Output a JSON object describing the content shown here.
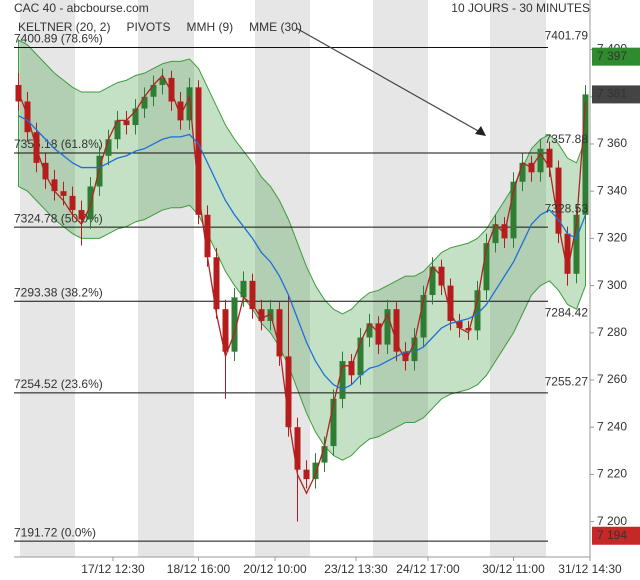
{
  "header": {
    "title": "CAC 40 - abcbourse.com",
    "period": "10 JOURS - 30 MINUTES"
  },
  "chart_data": {
    "type": "candlestick",
    "up_color": "#2e7d32",
    "down_color": "#b71c1c",
    "open": [
      7385,
      7378,
      7365,
      7352,
      7345,
      7340,
      7338,
      7332,
      7328,
      7342,
      7355,
      7362,
      7370,
      7368,
      7375,
      7380,
      7385,
      7388,
      7378,
      7370,
      7384,
      7330,
      7312,
      7290,
      7272,
      7295,
      7302,
      7290,
      7285,
      7290,
      7270,
      7240,
      7222,
      7218,
      7225,
      7232,
      7252,
      7268,
      7262,
      7278,
      7284,
      7275,
      7290,
      7272,
      7268,
      7278,
      7296,
      7308,
      7300,
      7285,
      7282,
      7281,
      7298,
      7318,
      7326,
      7320,
      7344,
      7352,
      7348,
      7358,
      7350,
      7322,
      7305,
      7330
    ],
    "high": [
      7390,
      7382,
      7369,
      7356,
      7349,
      7344,
      7342,
      7336,
      7346,
      7359,
      7366,
      7374,
      7374,
      7379,
      7384,
      7389,
      7392,
      7391,
      7382,
      7388,
      7387,
      7334,
      7316,
      7294,
      7299,
      7306,
      7305,
      7294,
      7294,
      7293,
      7296,
      7244,
      7226,
      7229,
      7236,
      7256,
      7272,
      7271,
      7282,
      7288,
      7287,
      7294,
      7293,
      7276,
      7282,
      7300,
      7312,
      7311,
      7303,
      7288,
      7285,
      7302,
      7322,
      7330,
      7329,
      7348,
      7356,
      7355,
      7362,
      7361,
      7353,
      7325,
      7334,
      7385
    ],
    "low": [
      7374,
      7361,
      7348,
      7341,
      7336,
      7334,
      7328,
      7317,
      7324,
      7338,
      7351,
      7358,
      7364,
      7364,
      7371,
      7376,
      7381,
      7374,
      7366,
      7366,
      7326,
      7308,
      7286,
      7252,
      7268,
      7291,
      7286,
      7281,
      7281,
      7266,
      7236,
      7200,
      7214,
      7214,
      7221,
      7228,
      7248,
      7258,
      7258,
      7274,
      7271,
      7271,
      7268,
      7264,
      7264,
      7274,
      7292,
      7296,
      7281,
      7278,
      7277,
      7277,
      7294,
      7314,
      7316,
      7316,
      7340,
      7344,
      7344,
      7346,
      7318,
      7300,
      7301,
      7326
    ],
    "close": [
      7378,
      7365,
      7352,
      7345,
      7340,
      7338,
      7332,
      7328,
      7342,
      7355,
      7362,
      7370,
      7368,
      7375,
      7380,
      7385,
      7388,
      7378,
      7370,
      7384,
      7330,
      7312,
      7290,
      7272,
      7295,
      7302,
      7290,
      7285,
      7290,
      7270,
      7240,
      7222,
      7218,
      7225,
      7232,
      7252,
      7268,
      7262,
      7278,
      7284,
      7275,
      7290,
      7272,
      7268,
      7278,
      7296,
      7308,
      7300,
      7285,
      7282,
      7281,
      7298,
      7318,
      7326,
      7320,
      7344,
      7352,
      7348,
      7358,
      7350,
      7322,
      7305,
      7330,
      7381
    ],
    "series": [
      {
        "name": "KELTNER (20, 2)",
        "color": "#3e9b3e",
        "upper": [
          7404,
          7402,
          7398,
          7394,
          7390,
          7387,
          7384,
          7382,
          7382,
          7382,
          7384,
          7386,
          7387,
          7389,
          7390,
          7392,
          7394,
          7395,
          7395,
          7396,
          7392,
          7384,
          7376,
          7368,
          7362,
          7357,
          7352,
          7346,
          7342,
          7336,
          7328,
          7318,
          7308,
          7300,
          7294,
          7290,
          7288,
          7290,
          7294,
          7297,
          7298,
          7300,
          7302,
          7304,
          7304,
          7306,
          7310,
          7314,
          7316,
          7317,
          7318,
          7320,
          7324,
          7330,
          7336,
          7342,
          7350,
          7358,
          7362,
          7364,
          7360,
          7354,
          7352,
          7362
        ],
        "lower": [
          7342,
          7340,
          7336,
          7332,
          7328,
          7325,
          7322,
          7320,
          7320,
          7320,
          7322,
          7324,
          7325,
          7327,
          7328,
          7330,
          7332,
          7333,
          7333,
          7334,
          7330,
          7322,
          7314,
          7306,
          7300,
          7295,
          7290,
          7284,
          7280,
          7274,
          7266,
          7256,
          7246,
          7238,
          7232,
          7228,
          7226,
          7228,
          7232,
          7235,
          7236,
          7238,
          7240,
          7242,
          7242,
          7244,
          7248,
          7252,
          7254,
          7255,
          7256,
          7258,
          7262,
          7268,
          7274,
          7280,
          7288,
          7296,
          7300,
          7302,
          7298,
          7292,
          7290,
          7300
        ]
      },
      {
        "name": "PIVOTS",
        "color": "#555555"
      },
      {
        "name": "MMH (9)",
        "color": "#b22222",
        "values": [
          7382,
          7372,
          7358,
          7347,
          7340,
          7336,
          7330,
          7326,
          7334,
          7350,
          7362,
          7370,
          7370,
          7374,
          7380,
          7385,
          7389,
          7382,
          7372,
          7380,
          7340,
          7312,
          7288,
          7270,
          7280,
          7295,
          7292,
          7286,
          7288,
          7274,
          7244,
          7220,
          7212,
          7220,
          7232,
          7250,
          7266,
          7266,
          7276,
          7284,
          7280,
          7288,
          7276,
          7268,
          7276,
          7294,
          7308,
          7304,
          7288,
          7282,
          7280,
          7294,
          7316,
          7326,
          7322,
          7340,
          7352,
          7350,
          7356,
          7350,
          7326,
          7306,
          7326,
          7378
        ]
      },
      {
        "name": "MME (30)",
        "color": "#1e6fd9",
        "values": [
          7372,
          7370,
          7366,
          7362,
          7358,
          7355,
          7352,
          7350,
          7350,
          7350,
          7352,
          7354,
          7355,
          7357,
          7358,
          7360,
          7362,
          7363,
          7363,
          7364,
          7360,
          7352,
          7344,
          7336,
          7330,
          7325,
          7320,
          7314,
          7310,
          7304,
          7296,
          7286,
          7276,
          7268,
          7262,
          7258,
          7256,
          7258,
          7262,
          7265,
          7266,
          7268,
          7270,
          7272,
          7272,
          7274,
          7278,
          7282,
          7284,
          7285,
          7286,
          7288,
          7292,
          7298,
          7304,
          7310,
          7318,
          7326,
          7330,
          7332,
          7328,
          7322,
          7320,
          7330
        ]
      }
    ],
    "ylim": [
      7185,
      7421
    ],
    "yticks": [
      {
        "value": 7200,
        "label": "7 200"
      },
      {
        "value": 7220,
        "label": "7 220"
      },
      {
        "value": 7240,
        "label": "7 240"
      },
      {
        "value": 7260,
        "label": "7 260"
      },
      {
        "value": 7280,
        "label": "7 280"
      },
      {
        "value": 7300,
        "label": "7 300"
      },
      {
        "value": 7320,
        "label": "7 320"
      },
      {
        "value": 7340,
        "label": "7 340"
      },
      {
        "value": 7360,
        "label": "7 360"
      },
      {
        "value": 7380,
        "label": "7 380"
      },
      {
        "value": 7400,
        "label": "7 400"
      }
    ],
    "xlim": [
      0,
      64
    ],
    "xticks": [
      {
        "value": 11,
        "label": "17/12 12:30"
      },
      {
        "value": 20.5,
        "label": "18/12 16:00"
      },
      {
        "value": 29,
        "label": "20/12 10:00"
      },
      {
        "value": 38,
        "label": "23/12 13:30"
      },
      {
        "value": 46,
        "label": "24/12 17:00"
      },
      {
        "value": 55.5,
        "label": "30/12 11:00"
      },
      {
        "value": 64,
        "label": "31/12 14:30"
      }
    ],
    "fib_levels": [
      {
        "value": 7400.89,
        "label": "7400.89  (78.6%)"
      },
      {
        "value": 7356.18,
        "label": "7356.18  (61.8%)"
      },
      {
        "value": 7324.78,
        "label": "7324.78  (50.0%)"
      },
      {
        "value": 7293.38,
        "label": "7293.38  (38.2%)"
      },
      {
        "value": 7254.52,
        "label": "7254.52  (23.6%)"
      },
      {
        "value": 7191.72,
        "label": "7191.72  (0.0%)"
      }
    ],
    "level_labels": [
      {
        "value": 7401.79,
        "color": "#2e7d32"
      },
      {
        "value": 7357.88,
        "color": "#2e7d32"
      },
      {
        "value": 7328.53,
        "color": "#333333"
      },
      {
        "value": 7284.42,
        "color": "#c62828"
      },
      {
        "value": 7255.27,
        "color": "#c62828"
      }
    ],
    "price_tags": [
      {
        "value": 7397,
        "label": "7 397",
        "color": "#2e8b2e"
      },
      {
        "value": 7381,
        "label": "7 381",
        "color": "#444444"
      },
      {
        "value": 7194,
        "label": "7 194",
        "color": "#c62828"
      }
    ]
  }
}
